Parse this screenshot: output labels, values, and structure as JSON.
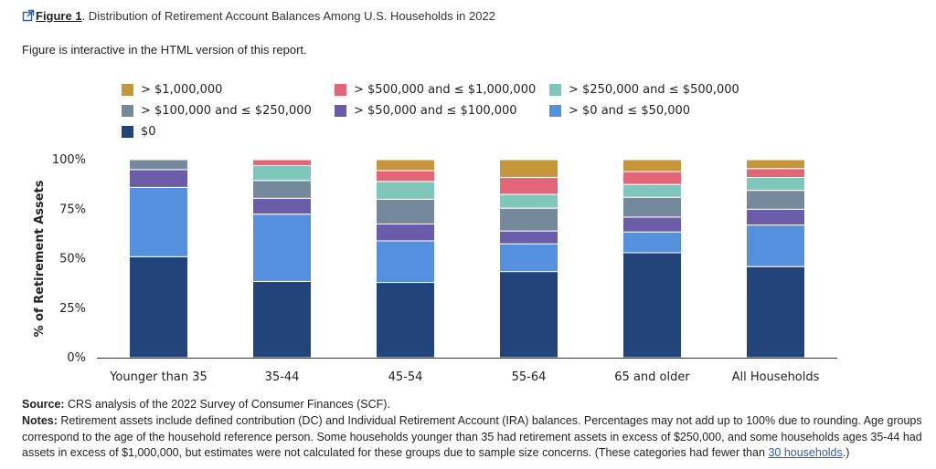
{
  "figure": {
    "label": "Figure 1",
    "title": ". Distribution of Retirement Account Balances Among U.S. Households in 2022",
    "interactive_note": "Figure is interactive in the HTML version of this report."
  },
  "colors": {
    "title_icon": "#2a5db0",
    "link": "#2a5db0"
  },
  "chart_data": {
    "type": "bar",
    "stacked": true,
    "categories": [
      "Younger than 35",
      "35-44",
      "45-54",
      "55-64",
      "65 and older",
      "All Households"
    ],
    "ylabel": "% of Retirement Assets",
    "xlabel": "",
    "ylim": [
      0,
      100
    ],
    "yticks": [
      0,
      25,
      50,
      75,
      100
    ],
    "ytick_labels": [
      "0%",
      "25%",
      "50%",
      "75%",
      "100%"
    ],
    "grid": false,
    "legend_position": "top",
    "legend_order": [
      "> $1,000,000",
      "> $500,000 and ≤ $1,000,000",
      "> $250,000 and ≤ $500,000",
      "> $100,000 and ≤ $250,000",
      "> $50,000 and ≤ $100,000",
      "> $0 and ≤ $50,000",
      "$0"
    ],
    "series": [
      {
        "name": "$0",
        "color": "#23447a",
        "values": [
          51,
          38.5,
          38,
          43.5,
          53,
          46
        ]
      },
      {
        "name": "> $0 and ≤ $50,000",
        "color": "#5590de",
        "values": [
          35,
          34,
          21,
          14,
          10.5,
          21
        ]
      },
      {
        "name": "> $50,000 and ≤ $100,000",
        "color": "#6a5ca8",
        "values": [
          9,
          8,
          8.5,
          6.5,
          7.5,
          8
        ]
      },
      {
        "name": "> $100,000 and ≤ $250,000",
        "color": "#74899c",
        "values": [
          5,
          9,
          12.5,
          11.5,
          10,
          9.5
        ]
      },
      {
        "name": "> $250,000 and ≤ $500,000",
        "color": "#7fc7bb",
        "values": [
          null,
          7.5,
          9,
          7,
          6.5,
          6.5
        ]
      },
      {
        "name": "> $500,000 and ≤ $1,000,000",
        "color": "#e26678",
        "values": [
          null,
          3,
          5.5,
          8.5,
          6.5,
          4.5
        ]
      },
      {
        "name": "> $1,000,000",
        "color": "#c5963a",
        "values": [
          null,
          null,
          5.5,
          9,
          6,
          4.5
        ]
      }
    ]
  },
  "footer": {
    "source_label": "Source:",
    "source_text": " CRS analysis of the 2022 Survey of Consumer Finances (SCF).",
    "notes_label": "Notes:",
    "notes_text": " Retirement assets include defined contribution (DC) and Individual Retirement Account (IRA) balances. Percentages may not add up to 100% due to rounding. Age groups correspond to the age of the household reference person. Some households younger than 35 had retirement assets in excess of $250,000, and some households ages 35-44 had assets in excess of $1,000,000, but estimates were not calculated for these groups due to sample size concerns. (These categories had fewer than ",
    "notes_link": "30 households",
    "notes_end": ".)"
  }
}
